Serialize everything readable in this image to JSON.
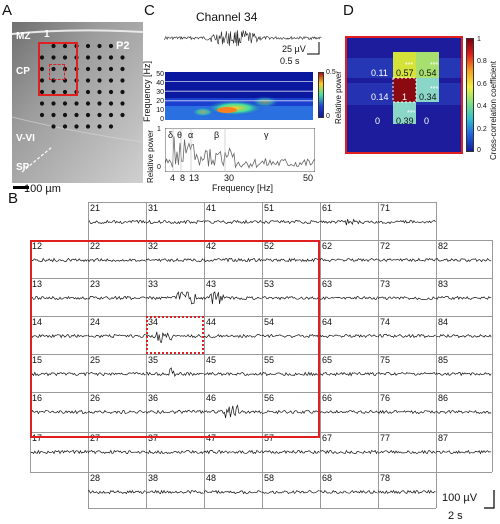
{
  "panels": {
    "a": "A",
    "b": "B",
    "c": "C",
    "d": "D"
  },
  "panel_a": {
    "layer_labels": [
      "MZ",
      "CP",
      "V-VI",
      "SP"
    ],
    "marker": "1",
    "region": "P2",
    "scale_label": "100 µm"
  },
  "panel_c": {
    "title": "Channel 34",
    "scale_voltage": "25 µV",
    "scale_time": "0.5 s",
    "spectrogram_ylabel": "Frequency [Hz]",
    "spectrogram_yticks": [
      "50",
      "40",
      "30",
      "20",
      "10",
      "0"
    ],
    "colorbar_label": "Relative power",
    "colorbar_ticks": [
      "0.5",
      "0"
    ],
    "spectrum_ylabel": "Relative power",
    "spectrum_yticks": [
      "1",
      "0"
    ],
    "band_labels": [
      "δ",
      "θ",
      "α",
      "β",
      "γ"
    ],
    "xticks": [
      "4",
      "8",
      "13",
      "30",
      "50"
    ],
    "xlabel": "Frequency [Hz]"
  },
  "panel_d": {
    "coefficients": [
      [
        "0.11",
        "0.57",
        "0.54"
      ],
      [
        "0.14",
        "1",
        "0.34"
      ],
      [
        "0",
        "0.39",
        "0"
      ]
    ],
    "significance": "***",
    "colorbar_ticks": [
      "1",
      "0.8",
      "0.6",
      "0.4",
      "0.2",
      "0"
    ],
    "colorbar_label": "Cross-correlation coefficient",
    "colors": {
      "high": "#8b0a12",
      "mid_high": "#d4e23a",
      "mid": "#8ad6c8",
      "low": "#1a1aa8",
      "background": "#1c1c9c"
    }
  },
  "panel_b": {
    "channels": [
      [
        "21",
        "31",
        "41",
        "51",
        "61",
        "71"
      ],
      [
        "12",
        "22",
        "32",
        "42",
        "52",
        "62",
        "72",
        "82"
      ],
      [
        "13",
        "23",
        "33",
        "43",
        "53",
        "63",
        "73",
        "83"
      ],
      [
        "14",
        "24",
        "34",
        "44",
        "54",
        "64",
        "74",
        "84"
      ],
      [
        "15",
        "25",
        "35",
        "45",
        "55",
        "65",
        "75",
        "85"
      ],
      [
        "16",
        "26",
        "36",
        "46",
        "56",
        "66",
        "76",
        "86"
      ],
      [
        "17",
        "27",
        "37",
        "47",
        "57",
        "67",
        "77",
        "87"
      ],
      [
        "28",
        "38",
        "48",
        "58",
        "68",
        "78"
      ]
    ],
    "scale_voltage": "100 µV",
    "scale_time": "2 s",
    "highlight_color": "#e02020"
  }
}
